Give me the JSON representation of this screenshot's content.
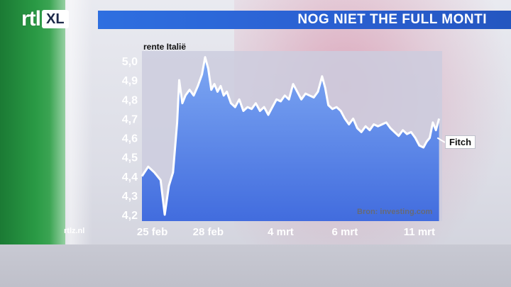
{
  "header": {
    "logo_main": "rtl",
    "logo_badge": "XL",
    "title": "NOG NIET THE FULL MONTI"
  },
  "watermark": "rtlz.nl",
  "colors": {
    "title_bar": "#2e6fe0",
    "area_fill_top": "#6d9ef2",
    "area_fill_bottom": "#3f6fe0",
    "line": "#ffffff",
    "flag_green": "#2a9a45",
    "flag_red": "#d6789a"
  },
  "chart_data": {
    "type": "area",
    "title": "",
    "ylabel": "rente Italië",
    "xlabel": "",
    "ylim": [
      4.2,
      5.0
    ],
    "yticks": [
      "5,0",
      "4,9",
      "4,8",
      "4,7",
      "4,6",
      "4,5",
      "4,4",
      "4,3",
      "4,2"
    ],
    "ytick_values": [
      5.0,
      4.9,
      4.8,
      4.7,
      4.6,
      4.5,
      4.4,
      4.3,
      4.2
    ],
    "xticks": [
      "25 feb",
      "28 feb",
      "4 mrt",
      "6 mrt",
      "11 mrt"
    ],
    "xtick_positions": [
      0.5,
      3.2,
      6.7,
      9.8,
      13.4
    ],
    "xlim": [
      0,
      14.5
    ],
    "grid": false,
    "source": "Bron: investing.com",
    "annotation": "Fitch",
    "series": [
      {
        "values": [
          [
            0.0,
            4.4
          ],
          [
            0.3,
            4.45
          ],
          [
            0.6,
            4.42
          ],
          [
            0.9,
            4.38
          ],
          [
            1.1,
            4.2
          ],
          [
            1.3,
            4.35
          ],
          [
            1.5,
            4.42
          ],
          [
            1.7,
            4.68
          ],
          [
            1.8,
            4.9
          ],
          [
            1.95,
            4.78
          ],
          [
            2.1,
            4.82
          ],
          [
            2.3,
            4.85
          ],
          [
            2.5,
            4.82
          ],
          [
            2.7,
            4.87
          ],
          [
            2.9,
            4.93
          ],
          [
            3.05,
            5.02
          ],
          [
            3.2,
            4.96
          ],
          [
            3.35,
            4.85
          ],
          [
            3.5,
            4.88
          ],
          [
            3.65,
            4.84
          ],
          [
            3.8,
            4.87
          ],
          [
            3.95,
            4.82
          ],
          [
            4.1,
            4.84
          ],
          [
            4.3,
            4.78
          ],
          [
            4.5,
            4.76
          ],
          [
            4.7,
            4.8
          ],
          [
            4.9,
            4.74
          ],
          [
            5.1,
            4.76
          ],
          [
            5.3,
            4.75
          ],
          [
            5.5,
            4.78
          ],
          [
            5.7,
            4.74
          ],
          [
            5.9,
            4.76
          ],
          [
            6.1,
            4.72
          ],
          [
            6.3,
            4.76
          ],
          [
            6.5,
            4.8
          ],
          [
            6.7,
            4.79
          ],
          [
            6.9,
            4.82
          ],
          [
            7.1,
            4.8
          ],
          [
            7.3,
            4.88
          ],
          [
            7.5,
            4.84
          ],
          [
            7.7,
            4.8
          ],
          [
            7.9,
            4.83
          ],
          [
            8.1,
            4.82
          ],
          [
            8.3,
            4.81
          ],
          [
            8.5,
            4.84
          ],
          [
            8.7,
            4.92
          ],
          [
            8.85,
            4.86
          ],
          [
            9.0,
            4.77
          ],
          [
            9.2,
            4.75
          ],
          [
            9.4,
            4.76
          ],
          [
            9.6,
            4.74
          ],
          [
            9.8,
            4.7
          ],
          [
            10.0,
            4.67
          ],
          [
            10.2,
            4.7
          ],
          [
            10.4,
            4.65
          ],
          [
            10.6,
            4.63
          ],
          [
            10.8,
            4.66
          ],
          [
            11.0,
            4.64
          ],
          [
            11.2,
            4.67
          ],
          [
            11.4,
            4.66
          ],
          [
            11.6,
            4.67
          ],
          [
            11.8,
            4.68
          ],
          [
            12.0,
            4.65
          ],
          [
            12.2,
            4.63
          ],
          [
            12.4,
            4.61
          ],
          [
            12.6,
            4.64
          ],
          [
            12.8,
            4.62
          ],
          [
            13.0,
            4.63
          ],
          [
            13.2,
            4.6
          ],
          [
            13.4,
            4.56
          ],
          [
            13.6,
            4.55
          ],
          [
            13.75,
            4.58
          ],
          [
            13.9,
            4.6
          ],
          [
            14.05,
            4.68
          ],
          [
            14.2,
            4.64
          ],
          [
            14.35,
            4.7
          ]
        ]
      }
    ]
  }
}
